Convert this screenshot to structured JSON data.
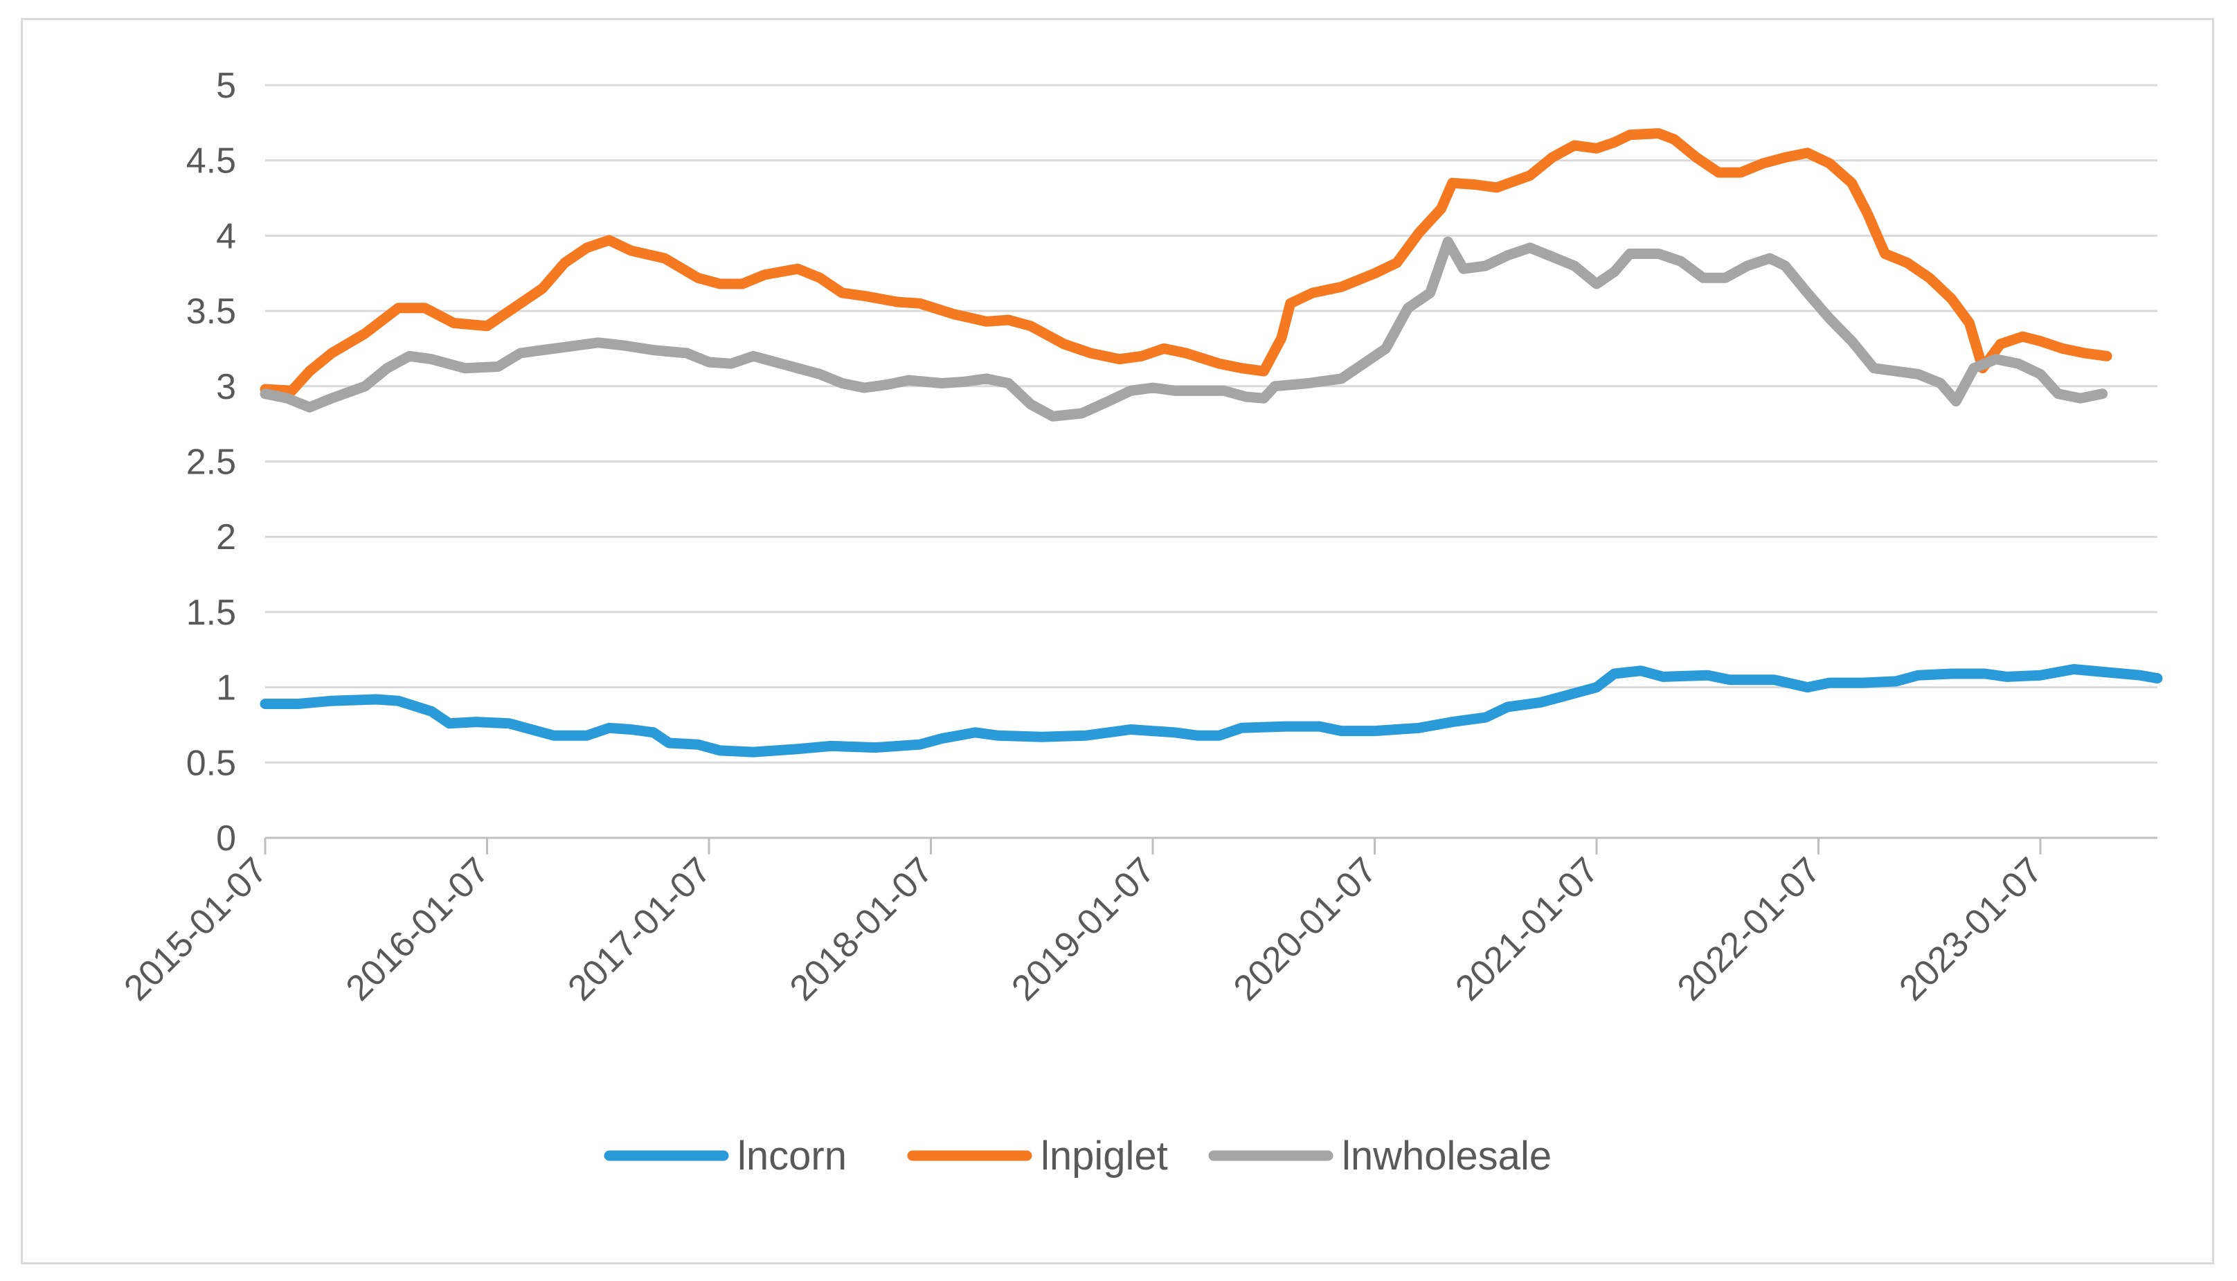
{
  "chart_data": {
    "type": "line",
    "title": "",
    "xlabel": "",
    "ylabel": "",
    "ylim": [
      0,
      5
    ],
    "yticks": [
      0,
      0.5,
      1,
      1.5,
      2,
      2.5,
      3,
      3.5,
      4,
      4.5,
      5
    ],
    "ytick_labels": [
      "0",
      "0.5",
      "1",
      "1.5",
      "2",
      "2.5",
      "3",
      "3.5",
      "4",
      "4.5",
      "5"
    ],
    "xlim": [
      2015.0,
      2023.45
    ],
    "xtick_labels": [
      "2015-01-07",
      "2016-01-07",
      "2017-01-07",
      "2018-01-07",
      "2019-01-07",
      "2020-01-07",
      "2021-01-07",
      "2022-01-07",
      "2023-01-07"
    ],
    "grid": true,
    "legend_position": "bottom",
    "series": [
      {
        "name": "lncorn",
        "color": "#2a9ad8",
        "points": [
          [
            2015.0,
            0.89
          ],
          [
            2015.15,
            0.89
          ],
          [
            2015.3,
            0.91
          ],
          [
            2015.5,
            0.92
          ],
          [
            2015.6,
            0.91
          ],
          [
            2015.75,
            0.84
          ],
          [
            2015.83,
            0.76
          ],
          [
            2015.95,
            0.77
          ],
          [
            2016.1,
            0.76
          ],
          [
            2016.2,
            0.72
          ],
          [
            2016.3,
            0.68
          ],
          [
            2016.45,
            0.68
          ],
          [
            2016.55,
            0.73
          ],
          [
            2016.65,
            0.72
          ],
          [
            2016.75,
            0.7
          ],
          [
            2016.82,
            0.63
          ],
          [
            2016.95,
            0.62
          ],
          [
            2017.05,
            0.58
          ],
          [
            2017.2,
            0.57
          ],
          [
            2017.4,
            0.59
          ],
          [
            2017.55,
            0.61
          ],
          [
            2017.75,
            0.6
          ],
          [
            2017.95,
            0.62
          ],
          [
            2018.05,
            0.66
          ],
          [
            2018.2,
            0.7
          ],
          [
            2018.3,
            0.68
          ],
          [
            2018.5,
            0.67
          ],
          [
            2018.7,
            0.68
          ],
          [
            2018.9,
            0.72
          ],
          [
            2019.1,
            0.7
          ],
          [
            2019.2,
            0.68
          ],
          [
            2019.3,
            0.68
          ],
          [
            2019.4,
            0.73
          ],
          [
            2019.6,
            0.74
          ],
          [
            2019.75,
            0.74
          ],
          [
            2019.85,
            0.71
          ],
          [
            2020.0,
            0.71
          ],
          [
            2020.2,
            0.73
          ],
          [
            2020.35,
            0.77
          ],
          [
            2020.5,
            0.8
          ],
          [
            2020.6,
            0.87
          ],
          [
            2020.75,
            0.9
          ],
          [
            2020.9,
            0.96
          ],
          [
            2021.0,
            1.0
          ],
          [
            2021.08,
            1.09
          ],
          [
            2021.2,
            1.11
          ],
          [
            2021.3,
            1.07
          ],
          [
            2021.5,
            1.08
          ],
          [
            2021.6,
            1.05
          ],
          [
            2021.8,
            1.05
          ],
          [
            2021.95,
            1.0
          ],
          [
            2022.05,
            1.03
          ],
          [
            2022.2,
            1.03
          ],
          [
            2022.35,
            1.04
          ],
          [
            2022.45,
            1.08
          ],
          [
            2022.6,
            1.09
          ],
          [
            2022.75,
            1.09
          ],
          [
            2022.85,
            1.07
          ],
          [
            2023.0,
            1.08
          ],
          [
            2023.15,
            1.12
          ],
          [
            2023.3,
            1.1
          ],
          [
            2023.45,
            1.08
          ],
          [
            2023.55,
            1.06
          ],
          [
            2023.6,
            1.05
          ],
          [
            2023.45,
            1.05
          ]
        ]
      },
      {
        "name": "lnpiglet",
        "color": "#f47920",
        "points": [
          [
            2015.0,
            2.98
          ],
          [
            2015.12,
            2.97
          ],
          [
            2015.2,
            3.1
          ],
          [
            2015.3,
            3.22
          ],
          [
            2015.45,
            3.35
          ],
          [
            2015.6,
            3.52
          ],
          [
            2015.72,
            3.52
          ],
          [
            2015.85,
            3.42
          ],
          [
            2016.0,
            3.4
          ],
          [
            2016.12,
            3.52
          ],
          [
            2016.25,
            3.65
          ],
          [
            2016.35,
            3.82
          ],
          [
            2016.45,
            3.92
          ],
          [
            2016.55,
            3.97
          ],
          [
            2016.65,
            3.9
          ],
          [
            2016.8,
            3.85
          ],
          [
            2016.95,
            3.72
          ],
          [
            2017.05,
            3.68
          ],
          [
            2017.15,
            3.68
          ],
          [
            2017.25,
            3.74
          ],
          [
            2017.4,
            3.78
          ],
          [
            2017.5,
            3.72
          ],
          [
            2017.6,
            3.62
          ],
          [
            2017.7,
            3.6
          ],
          [
            2017.85,
            3.56
          ],
          [
            2017.95,
            3.55
          ],
          [
            2018.1,
            3.48
          ],
          [
            2018.25,
            3.43
          ],
          [
            2018.35,
            3.44
          ],
          [
            2018.45,
            3.4
          ],
          [
            2018.6,
            3.28
          ],
          [
            2018.72,
            3.22
          ],
          [
            2018.85,
            3.18
          ],
          [
            2018.95,
            3.2
          ],
          [
            2019.05,
            3.25
          ],
          [
            2019.15,
            3.22
          ],
          [
            2019.3,
            3.15
          ],
          [
            2019.4,
            3.12
          ],
          [
            2019.5,
            3.1
          ],
          [
            2019.58,
            3.32
          ],
          [
            2019.62,
            3.55
          ],
          [
            2019.72,
            3.62
          ],
          [
            2019.85,
            3.66
          ],
          [
            2020.0,
            3.75
          ],
          [
            2020.1,
            3.82
          ],
          [
            2020.2,
            4.02
          ],
          [
            2020.3,
            4.18
          ],
          [
            2020.35,
            4.35
          ],
          [
            2020.45,
            4.34
          ],
          [
            2020.55,
            4.32
          ],
          [
            2020.7,
            4.4
          ],
          [
            2020.8,
            4.52
          ],
          [
            2020.9,
            4.6
          ],
          [
            2021.0,
            4.58
          ],
          [
            2021.08,
            4.62
          ],
          [
            2021.15,
            4.67
          ],
          [
            2021.28,
            4.68
          ],
          [
            2021.35,
            4.64
          ],
          [
            2021.45,
            4.52
          ],
          [
            2021.55,
            4.42
          ],
          [
            2021.65,
            4.42
          ],
          [
            2021.75,
            4.48
          ],
          [
            2021.85,
            4.52
          ],
          [
            2021.95,
            4.55
          ],
          [
            2022.05,
            4.48
          ],
          [
            2022.15,
            4.35
          ],
          [
            2022.22,
            4.15
          ],
          [
            2022.3,
            3.88
          ],
          [
            2022.4,
            3.82
          ],
          [
            2022.5,
            3.72
          ],
          [
            2022.6,
            3.58
          ],
          [
            2022.68,
            3.42
          ],
          [
            2022.74,
            3.12
          ],
          [
            2022.82,
            3.28
          ],
          [
            2022.92,
            3.33
          ],
          [
            2023.0,
            3.3
          ],
          [
            2023.1,
            3.25
          ],
          [
            2023.2,
            3.22
          ],
          [
            2023.3,
            3.2
          ]
        ]
      },
      {
        "name": "lnwholesale",
        "color": "#a5a5a5",
        "points": [
          [
            2015.0,
            2.95
          ],
          [
            2015.1,
            2.92
          ],
          [
            2015.2,
            2.86
          ],
          [
            2015.3,
            2.92
          ],
          [
            2015.45,
            3.0
          ],
          [
            2015.55,
            3.12
          ],
          [
            2015.65,
            3.2
          ],
          [
            2015.75,
            3.18
          ],
          [
            2015.9,
            3.12
          ],
          [
            2016.05,
            3.13
          ],
          [
            2016.15,
            3.22
          ],
          [
            2016.25,
            3.24
          ],
          [
            2016.35,
            3.26
          ],
          [
            2016.5,
            3.29
          ],
          [
            2016.62,
            3.27
          ],
          [
            2016.75,
            3.24
          ],
          [
            2016.9,
            3.22
          ],
          [
            2017.0,
            3.16
          ],
          [
            2017.1,
            3.15
          ],
          [
            2017.2,
            3.2
          ],
          [
            2017.3,
            3.16
          ],
          [
            2017.4,
            3.12
          ],
          [
            2017.5,
            3.08
          ],
          [
            2017.6,
            3.02
          ],
          [
            2017.7,
            2.99
          ],
          [
            2017.8,
            3.01
          ],
          [
            2017.9,
            3.04
          ],
          [
            2018.05,
            3.02
          ],
          [
            2018.15,
            3.03
          ],
          [
            2018.25,
            3.05
          ],
          [
            2018.35,
            3.02
          ],
          [
            2018.45,
            2.88
          ],
          [
            2018.55,
            2.8
          ],
          [
            2018.68,
            2.82
          ],
          [
            2018.8,
            2.9
          ],
          [
            2018.9,
            2.97
          ],
          [
            2019.0,
            2.99
          ],
          [
            2019.1,
            2.97
          ],
          [
            2019.2,
            2.97
          ],
          [
            2019.32,
            2.97
          ],
          [
            2019.42,
            2.93
          ],
          [
            2019.5,
            2.92
          ],
          [
            2019.55,
            3.0
          ],
          [
            2019.7,
            3.02
          ],
          [
            2019.85,
            3.05
          ],
          [
            2019.95,
            3.15
          ],
          [
            2020.05,
            3.25
          ],
          [
            2020.15,
            3.52
          ],
          [
            2020.25,
            3.62
          ],
          [
            2020.33,
            3.96
          ],
          [
            2020.4,
            3.78
          ],
          [
            2020.5,
            3.8
          ],
          [
            2020.6,
            3.87
          ],
          [
            2020.7,
            3.92
          ],
          [
            2020.8,
            3.86
          ],
          [
            2020.9,
            3.8
          ],
          [
            2021.0,
            3.68
          ],
          [
            2021.08,
            3.76
          ],
          [
            2021.15,
            3.88
          ],
          [
            2021.28,
            3.88
          ],
          [
            2021.38,
            3.83
          ],
          [
            2021.48,
            3.72
          ],
          [
            2021.58,
            3.72
          ],
          [
            2021.68,
            3.8
          ],
          [
            2021.78,
            3.85
          ],
          [
            2021.85,
            3.8
          ],
          [
            2021.95,
            3.62
          ],
          [
            2022.05,
            3.45
          ],
          [
            2022.15,
            3.3
          ],
          [
            2022.25,
            3.12
          ],
          [
            2022.35,
            3.1
          ],
          [
            2022.45,
            3.08
          ],
          [
            2022.55,
            3.02
          ],
          [
            2022.62,
            2.9
          ],
          [
            2022.7,
            3.12
          ],
          [
            2022.8,
            3.18
          ],
          [
            2022.9,
            3.15
          ],
          [
            2023.0,
            3.08
          ],
          [
            2023.08,
            2.95
          ],
          [
            2023.18,
            2.92
          ],
          [
            2023.28,
            2.95
          ]
        ]
      }
    ]
  }
}
